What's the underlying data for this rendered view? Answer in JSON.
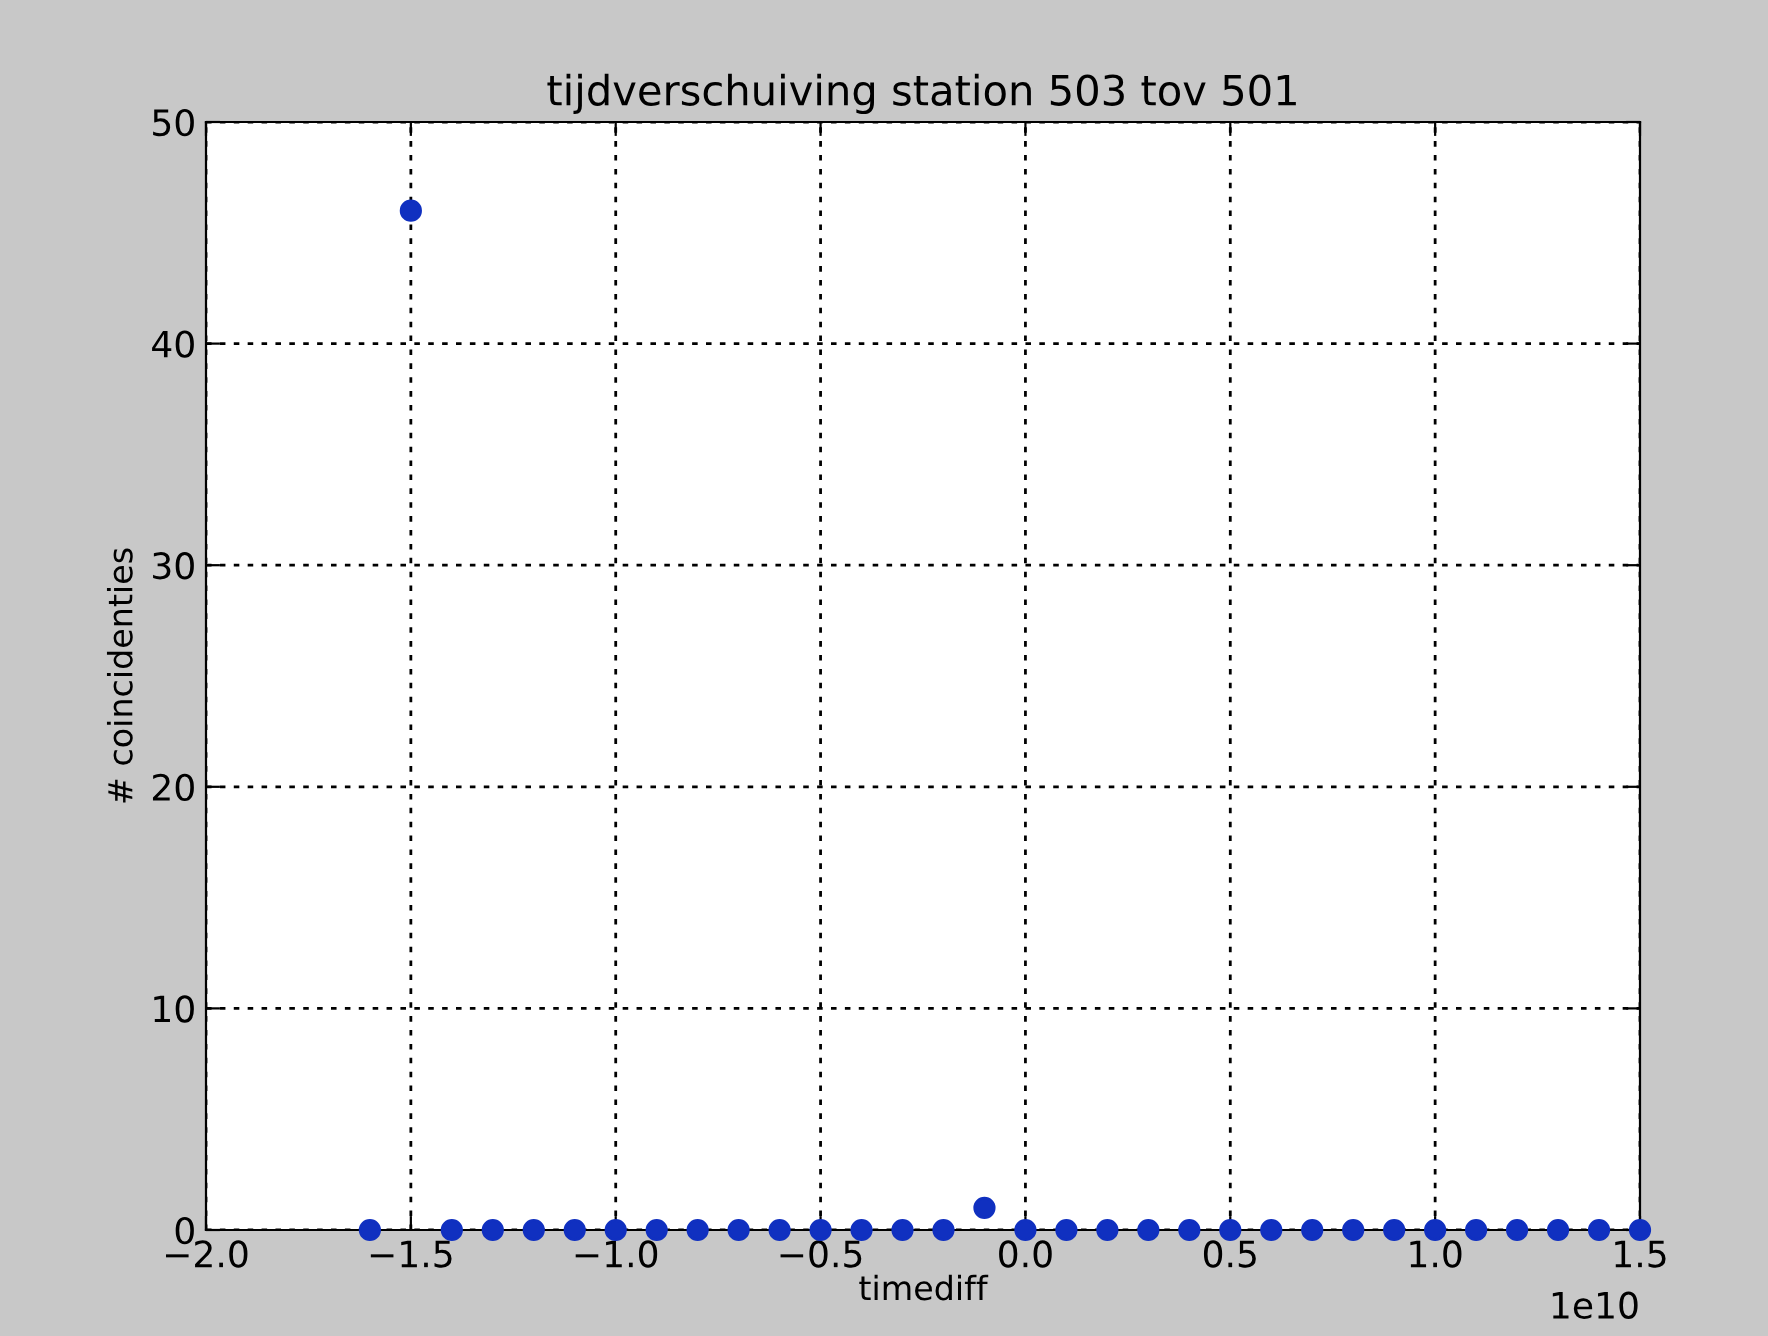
{
  "chart_data": {
    "type": "scatter",
    "title": "tijdverschuiving station 503 tov 501",
    "xlabel": "timediff",
    "ylabel": "# coincidenties",
    "x": [
      -1.6,
      -1.5,
      -1.4,
      -1.3,
      -1.2,
      -1.1,
      -1.0,
      -0.9,
      -0.8,
      -0.7,
      -0.6,
      -0.5,
      -0.4,
      -0.3,
      -0.2,
      -0.1,
      0,
      0.1,
      0.2,
      0.3,
      0.4,
      0.5,
      0.6,
      0.7,
      0.8,
      0.9,
      1.0,
      1.1,
      1.2,
      1.3,
      1.4,
      1.5
    ],
    "values": [
      0,
      46,
      0,
      0,
      0,
      0,
      0,
      0,
      0,
      0,
      0,
      0,
      0,
      0,
      0,
      1,
      0,
      0,
      0,
      0,
      0,
      0,
      0,
      0,
      0,
      0,
      0,
      0,
      0,
      0,
      0,
      0
    ],
    "color": "#1030c0",
    "marker": "circle",
    "grid": true,
    "xlim": [
      -2.0,
      1.5
    ],
    "xticks": [
      {
        "value": -2.0,
        "label": "−2.0"
      },
      {
        "value": -1.5,
        "label": "−1.5"
      },
      {
        "value": -1.0,
        "label": "−1.0"
      },
      {
        "value": -0.5,
        "label": "−0.5"
      },
      {
        "value": 0,
        "label": "0.0"
      },
      {
        "value": 0.5,
        "label": "0.5"
      },
      {
        "value": 1.0,
        "label": "1.0"
      },
      {
        "value": 1.5,
        "label": "1.5"
      }
    ],
    "ylim": [
      0,
      50
    ],
    "yticks": [
      0,
      10,
      20,
      30,
      40,
      50
    ],
    "annotations": [
      "1e10"
    ]
  }
}
